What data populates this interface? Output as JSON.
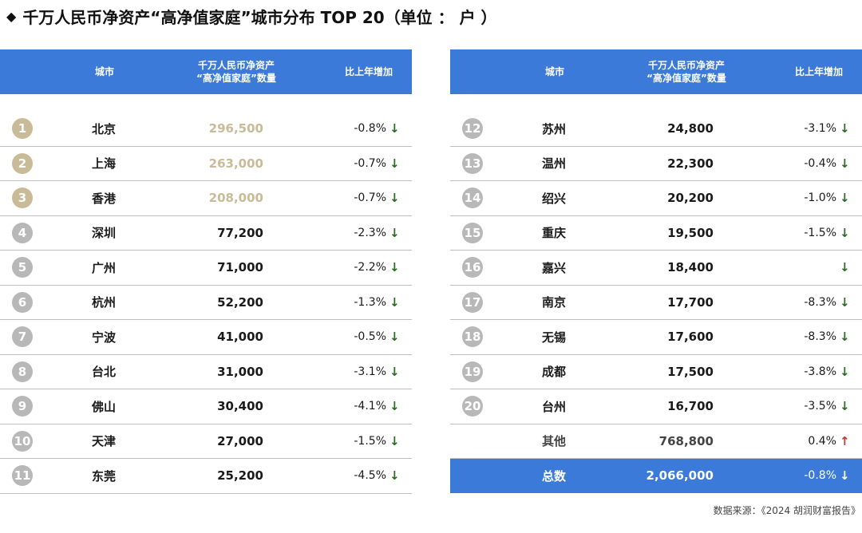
{
  "title": "千万人民币净资产“高净值家庭”城市分布 TOP 20（单位 ： 户 ）",
  "chart_data": {
    "type": "table",
    "columns": [
      "城市",
      "千万人民币净资产\n“高净值家庭”数量",
      "比上年增加"
    ],
    "rows": [
      {
        "rank": "1",
        "city": "北京",
        "count": "296,500",
        "change": "-0.8%",
        "dir": "down",
        "top": true
      },
      {
        "rank": "2",
        "city": "上海",
        "count": "263,000",
        "change": "-0.7%",
        "dir": "down",
        "top": true
      },
      {
        "rank": "3",
        "city": "香港",
        "count": "208,000",
        "change": "-0.7%",
        "dir": "down",
        "top": true
      },
      {
        "rank": "4",
        "city": "深圳",
        "count": "77,200",
        "change": "-2.3%",
        "dir": "down"
      },
      {
        "rank": "5",
        "city": "广州",
        "count": "71,000",
        "change": "-2.2%",
        "dir": "down"
      },
      {
        "rank": "6",
        "city": "杭州",
        "count": "52,200",
        "change": "-1.3%",
        "dir": "down"
      },
      {
        "rank": "7",
        "city": "宁波",
        "count": "41,000",
        "change": "-0.5%",
        "dir": "down"
      },
      {
        "rank": "8",
        "city": "台北",
        "count": "31,000",
        "change": "-3.1%",
        "dir": "down"
      },
      {
        "rank": "9",
        "city": "佛山",
        "count": "30,400",
        "change": "-4.1%",
        "dir": "down"
      },
      {
        "rank": "10",
        "city": "天津",
        "count": "27,000",
        "change": "-1.5%",
        "dir": "down"
      },
      {
        "rank": "11",
        "city": "东莞",
        "count": "25,200",
        "change": "-4.5%",
        "dir": "down"
      },
      {
        "rank": "12",
        "city": "苏州",
        "count": "24,800",
        "change": "-3.1%",
        "dir": "down"
      },
      {
        "rank": "13",
        "city": "温州",
        "count": "22,300",
        "change": "-0.4%",
        "dir": "down"
      },
      {
        "rank": "14",
        "city": "绍兴",
        "count": "20,200",
        "change": "-1.0%",
        "dir": "down"
      },
      {
        "rank": "15",
        "city": "重庆",
        "count": "19,500",
        "change": "-1.5%",
        "dir": "down"
      },
      {
        "rank": "16",
        "city": "嘉兴",
        "count": "18,400",
        "change": "",
        "dir": "down"
      },
      {
        "rank": "17",
        "city": "南京",
        "count": "17,700",
        "change": "-8.3%",
        "dir": "down"
      },
      {
        "rank": "18",
        "city": "无锡",
        "count": "17,600",
        "change": "-8.3%",
        "dir": "down"
      },
      {
        "rank": "19",
        "city": "成都",
        "count": "17,500",
        "change": "-3.8%",
        "dir": "down"
      },
      {
        "rank": "20",
        "city": "台州",
        "count": "16,700",
        "change": "-3.5%",
        "dir": "down"
      }
    ],
    "other": {
      "city": "其他",
      "count": "768,800",
      "change": "0.4%",
      "dir": "up"
    },
    "total": {
      "city": "总数",
      "count": "2,066,000",
      "change": "-0.8%",
      "dir": "down"
    }
  },
  "source": "数据来源：《2024 胡润财富报告》",
  "colors": {
    "header": "#3b7ad9",
    "top3": "#c9bb98",
    "badge": "#b8b8b8",
    "down": "#2a6b24",
    "up": "#c0392b"
  }
}
